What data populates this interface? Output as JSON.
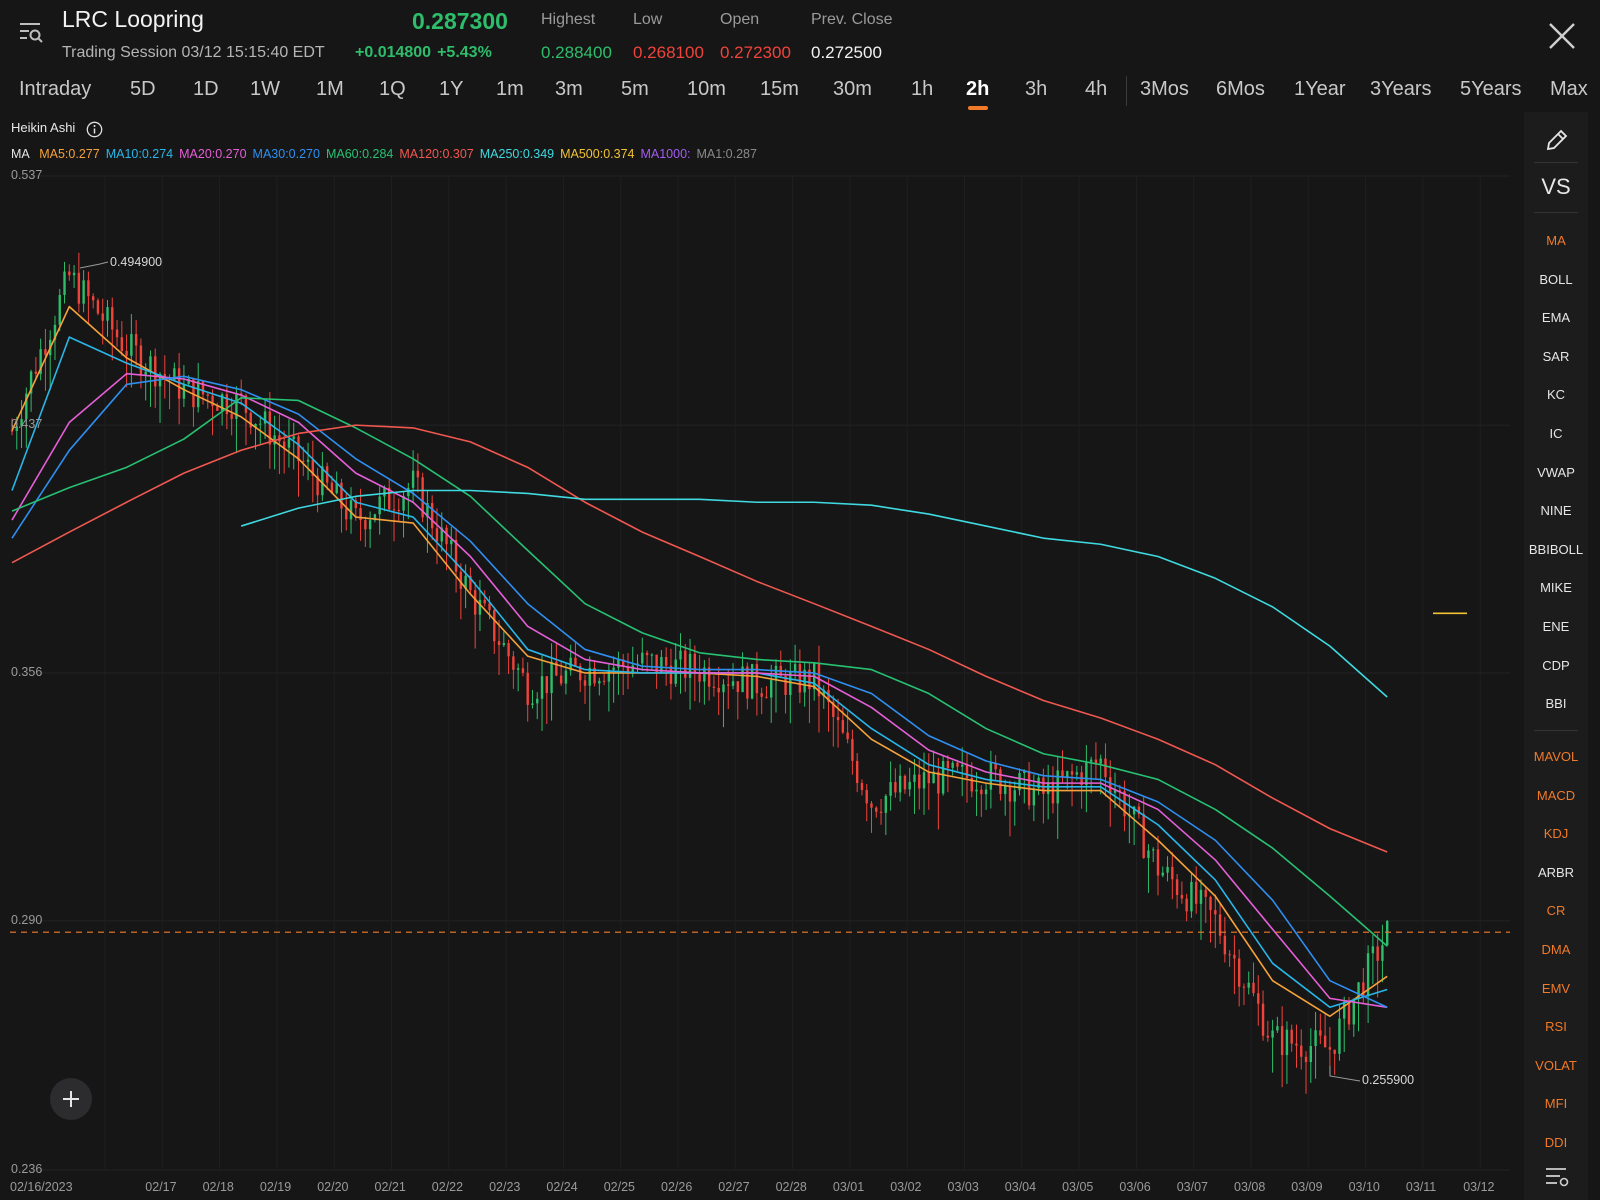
{
  "header": {
    "symbol": "LRC Loopring",
    "session": "Trading Session 03/12 15:15:40 EDT",
    "price": "0.287300",
    "change": "+0.014800",
    "change_pct": "+5.43%",
    "stats": [
      {
        "label": "Highest",
        "value": "0.288400",
        "color": "#2ebd6b"
      },
      {
        "label": "Low",
        "value": "0.268100",
        "color": "#f0433a"
      },
      {
        "label": "Open",
        "value": "0.272300",
        "color": "#f0433a"
      },
      {
        "label": "Prev. Close",
        "value": "0.272500",
        "color": "#f2f2f2"
      }
    ]
  },
  "tabs": {
    "items": [
      "Intraday",
      "5D",
      "1D",
      "1W",
      "1M",
      "1Q",
      "1Y",
      "1m",
      "3m",
      "5m",
      "10m",
      "15m",
      "30m",
      "1h",
      "2h",
      "3h",
      "4h",
      "3Mos",
      "6Mos",
      "1Year",
      "3Years",
      "5Years",
      "Max"
    ],
    "active": "2h",
    "active_color": "#f07a28"
  },
  "chart": {
    "chart_type": "Heikin Ashi",
    "ma_label": "MA",
    "ma_legend": [
      {
        "text": "MA5:0.277",
        "color": "#f5a23a"
      },
      {
        "text": "MA10:0.274",
        "color": "#29b6e8"
      },
      {
        "text": "MA20:0.270",
        "color": "#e55fd6"
      },
      {
        "text": "MA30:0.270",
        "color": "#2f8ff0"
      },
      {
        "text": "MA60:0.284",
        "color": "#27c172"
      },
      {
        "text": "MA120:0.307",
        "color": "#f0584f"
      },
      {
        "text": "MA250:0.349",
        "color": "#3fd9e0"
      },
      {
        "text": "MA500:0.374",
        "color": "#f2c230"
      },
      {
        "text": "MA1000:",
        "color": "#a45cf2"
      },
      {
        "text": "MA1:0.287",
        "color": "#8a8a8a"
      }
    ],
    "y_ticks": [
      "0.537",
      "0.437",
      "0.356",
      "0.290",
      "0.236"
    ],
    "x_ticks": [
      "02/16/2023",
      "02/17",
      "02/18",
      "02/19",
      "02/20",
      "02/21",
      "02/22",
      "02/23",
      "02/24",
      "02/25",
      "02/26",
      "02/27",
      "02/28",
      "03/01",
      "03/02",
      "03/03",
      "03/04",
      "03/05",
      "03/06",
      "03/07",
      "03/08",
      "03/09",
      "03/10",
      "03/11",
      "03/12"
    ],
    "high_label": "0.494900",
    "low_label": "0.255900",
    "current_price_line_color": "#f07a28",
    "up_color": "#2ebd6b",
    "down_color": "#f0433a"
  },
  "chart_data": {
    "type": "line",
    "title": "LRC Loopring",
    "ylim": [
      0.236,
      0.537
    ],
    "y_scale": "log",
    "grid": true,
    "x": [
      "02/16",
      "02/17",
      "02/18",
      "02/19",
      "02/20",
      "02/21",
      "02/22",
      "02/23",
      "02/24",
      "02/25",
      "02/26",
      "02/27",
      "02/28",
      "03/01",
      "03/02",
      "03/03",
      "03/04",
      "03/05",
      "03/06",
      "03/07",
      "03/08",
      "03/09",
      "03/10",
      "03/11",
      "03/12"
    ],
    "series": [
      {
        "name": "MA5",
        "values": [
          0.435,
          0.482,
          0.462,
          0.45,
          0.44,
          0.425,
          0.405,
          0.403,
          0.38,
          0.361,
          0.356,
          0.356,
          0.356,
          0.355,
          0.352,
          0.337,
          0.328,
          0.325,
          0.323,
          0.323,
          0.31,
          0.296,
          0.276,
          0.268,
          0.277
        ]
      },
      {
        "name": "MA10",
        "values": [
          0.414,
          0.47,
          0.46,
          0.452,
          0.445,
          0.43,
          0.41,
          0.405,
          0.385,
          0.363,
          0.357,
          0.356,
          0.356,
          0.356,
          0.353,
          0.34,
          0.33,
          0.326,
          0.324,
          0.324,
          0.314,
          0.3,
          0.28,
          0.27,
          0.274
        ]
      },
      {
        "name": "MA20",
        "values": [
          0.404,
          0.438,
          0.456,
          0.454,
          0.448,
          0.438,
          0.42,
          0.41,
          0.392,
          0.37,
          0.36,
          0.357,
          0.356,
          0.356,
          0.355,
          0.346,
          0.334,
          0.328,
          0.325,
          0.325,
          0.318,
          0.305,
          0.288,
          0.272,
          0.27
        ]
      },
      {
        "name": "MA30",
        "values": [
          0.398,
          0.428,
          0.452,
          0.455,
          0.45,
          0.441,
          0.425,
          0.413,
          0.397,
          0.377,
          0.363,
          0.358,
          0.357,
          0.357,
          0.356,
          0.35,
          0.338,
          0.331,
          0.327,
          0.326,
          0.32,
          0.31,
          0.295,
          0.276,
          0.27
        ]
      },
      {
        "name": "MA60",
        "values": [
          0.407,
          0.415,
          0.422,
          0.432,
          0.447,
          0.446,
          0.436,
          0.425,
          0.412,
          0.394,
          0.377,
          0.368,
          0.362,
          0.36,
          0.359,
          0.357,
          0.35,
          0.34,
          0.333,
          0.33,
          0.326,
          0.318,
          0.308,
          0.296,
          0.284
        ]
      },
      {
        "name": "MA120",
        "values": [
          0.39,
          0.4,
          0.41,
          0.42,
          0.428,
          0.434,
          0.437,
          0.436,
          0.431,
          0.422,
          0.41,
          0.4,
          0.392,
          0.384,
          0.377,
          0.37,
          0.363,
          0.355,
          0.348,
          0.343,
          0.337,
          0.33,
          0.321,
          0.313,
          0.307
        ]
      },
      {
        "name": "MA250",
        "values": [
          null,
          null,
          null,
          null,
          0.402,
          0.408,
          0.412,
          0.414,
          0.414,
          0.413,
          0.411,
          0.411,
          0.411,
          0.41,
          0.41,
          0.409,
          0.406,
          0.402,
          0.398,
          0.396,
          0.392,
          0.385,
          0.376,
          0.364,
          0.349
        ]
      },
      {
        "name": "MA500",
        "values": [
          null,
          null,
          null,
          null,
          null,
          null,
          null,
          null,
          null,
          null,
          null,
          null,
          null,
          null,
          null,
          null,
          null,
          null,
          null,
          null,
          null,
          null,
          null,
          0.374,
          0.374
        ]
      },
      {
        "name": "Price",
        "values": [
          0.435,
          0.494,
          0.466,
          0.45,
          0.445,
          0.425,
          0.404,
          0.416,
          0.38,
          0.352,
          0.357,
          0.359,
          0.357,
          0.353,
          0.354,
          0.32,
          0.326,
          0.327,
          0.322,
          0.331,
          0.303,
          0.29,
          0.263,
          0.261,
          0.287
        ]
      }
    ]
  },
  "sidebar": {
    "top": [
      {
        "kind": "icon",
        "name": "pencil"
      },
      {
        "kind": "text",
        "label": "VS"
      }
    ],
    "main_indicators": [
      {
        "label": "MA",
        "color": "#f07a28"
      },
      {
        "label": "BOLL",
        "color": "#e6e6e6"
      },
      {
        "label": "EMA",
        "color": "#e6e6e6"
      },
      {
        "label": "SAR",
        "color": "#e6e6e6"
      },
      {
        "label": "KC",
        "color": "#e6e6e6"
      },
      {
        "label": "IC",
        "color": "#e6e6e6"
      },
      {
        "label": "VWAP",
        "color": "#e6e6e6"
      },
      {
        "label": "NINE",
        "color": "#e6e6e6"
      },
      {
        "label": "BBIBOLL",
        "color": "#e6e6e6"
      },
      {
        "label": "MIKE",
        "color": "#e6e6e6"
      },
      {
        "label": "ENE",
        "color": "#e6e6e6"
      },
      {
        "label": "CDP",
        "color": "#e6e6e6"
      },
      {
        "label": "BBI",
        "color": "#e6e6e6"
      }
    ],
    "sub_indicators": [
      {
        "label": "MAVOL",
        "color": "#f07a28"
      },
      {
        "label": "MACD",
        "color": "#f07a28"
      },
      {
        "label": "KDJ",
        "color": "#f07a28"
      },
      {
        "label": "ARBR",
        "color": "#e6e6e6"
      },
      {
        "label": "CR",
        "color": "#f07a28"
      },
      {
        "label": "DMA",
        "color": "#f07a28"
      },
      {
        "label": "EMV",
        "color": "#f07a28"
      },
      {
        "label": "RSI",
        "color": "#f07a28"
      },
      {
        "label": "VOLAT",
        "color": "#f07a28"
      },
      {
        "label": "MFI",
        "color": "#f07a28"
      },
      {
        "label": "DDI",
        "color": "#f07a28"
      }
    ]
  }
}
